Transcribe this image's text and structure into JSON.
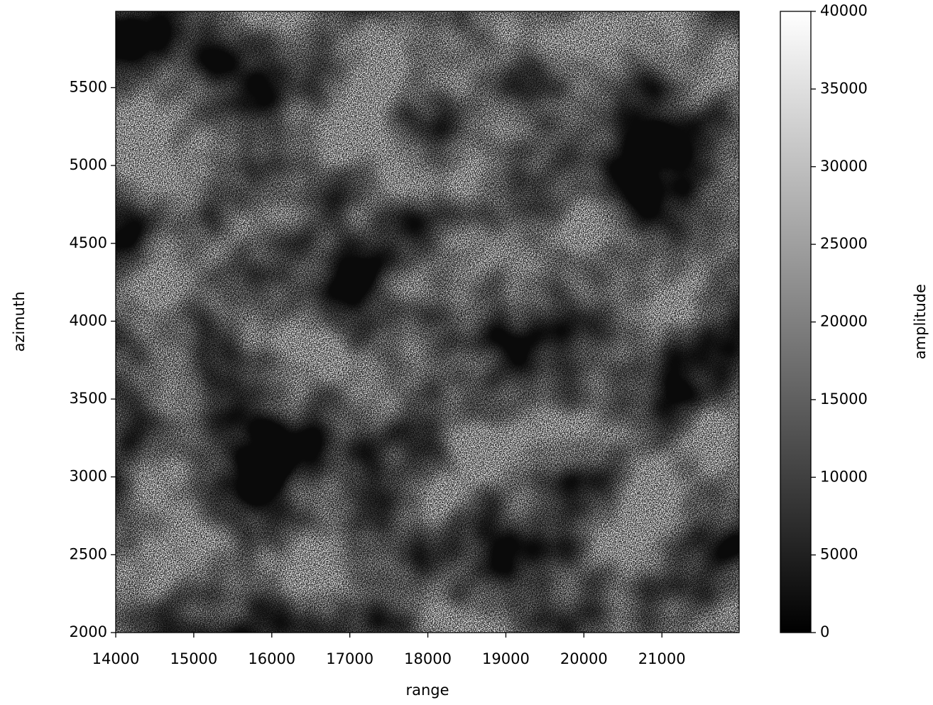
{
  "chart_data": {
    "type": "image",
    "xlabel": "range",
    "ylabel": "azimuth",
    "xlim": [
      14000,
      21990
    ],
    "xticks": [
      14000,
      15000,
      16000,
      17000,
      18000,
      19000,
      20000,
      21000
    ],
    "ylim": [
      2000,
      5990
    ],
    "yticks": [
      2000,
      2500,
      3000,
      3500,
      4000,
      4500,
      5000,
      5500
    ],
    "colormap": "gray",
    "colorbar": {
      "label": "amplitude",
      "lim": [
        0,
        40000
      ],
      "ticks": [
        0,
        5000,
        10000,
        15000,
        20000,
        25000,
        30000,
        35000,
        40000
      ]
    }
  }
}
